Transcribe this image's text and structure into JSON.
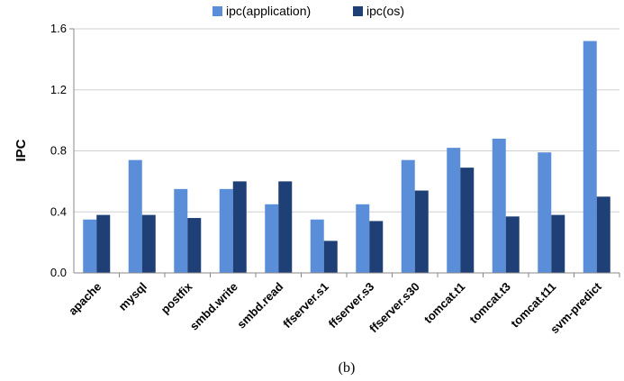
{
  "chart_data": {
    "type": "bar",
    "categories": [
      "apache",
      "mysql",
      "postfix",
      "smbd.write",
      "smbd.read",
      "ffserver.s1",
      "ffserver.s3",
      "ffserver.s30",
      "tomcat.t1",
      "tomcat.t3",
      "tomcat.t11",
      "svm-predict"
    ],
    "series": [
      {
        "name": "ipc(application)",
        "color": "#5B8ED8",
        "values": [
          0.35,
          0.74,
          0.55,
          0.55,
          0.45,
          0.35,
          0.45,
          0.74,
          0.82,
          0.88,
          0.79,
          1.52
        ]
      },
      {
        "name": "ipc(os)",
        "color": "#1F3F77",
        "values": [
          0.38,
          0.38,
          0.36,
          0.6,
          0.6,
          0.21,
          0.34,
          0.54,
          0.69,
          0.37,
          0.38,
          0.5
        ]
      }
    ],
    "ylabel": "IPC",
    "xlabel": "",
    "ylim": [
      0,
      1.6
    ],
    "yticks": [
      "0.0",
      "0.4",
      "0.8",
      "1.2",
      "1.6"
    ],
    "grid": true,
    "legend_position": "top-center"
  },
  "caption": "(b)"
}
